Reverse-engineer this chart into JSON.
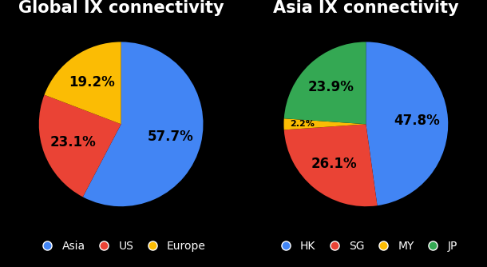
{
  "global": {
    "title": "Global IX connectivity",
    "values": [
      57.7,
      23.1,
      19.2
    ],
    "labels": [
      "57.7%",
      "23.1%",
      "19.2%"
    ],
    "colors": [
      "#4285f4",
      "#ea4335",
      "#fbbc04"
    ],
    "legend_labels": [
      "Asia",
      "US",
      "Europe"
    ],
    "legend_colors": [
      "#4285f4",
      "#ea4335",
      "#fbbc04"
    ],
    "startangle": 90,
    "counterclock": false
  },
  "asia": {
    "title": "Asia IX connectivity",
    "values": [
      47.8,
      26.1,
      2.2,
      23.9
    ],
    "labels": [
      "47.8%",
      "26.1%",
      "2.2%",
      "23.9%"
    ],
    "colors": [
      "#4285f4",
      "#ea4335",
      "#fbbc04",
      "#34a853"
    ],
    "legend_labels": [
      "HK",
      "SG",
      "MY",
      "JP"
    ],
    "legend_colors": [
      "#4285f4",
      "#ea4335",
      "#fbbc04",
      "#34a853"
    ],
    "startangle": 90,
    "counterclock": false
  },
  "background_color": "#000000",
  "label_text_color": "#000000",
  "title_text_color": "#ffffff",
  "legend_text_color": "#ffffff",
  "title_fontsize": 15,
  "label_fontsize": 12,
  "small_label_fontsize": 8,
  "legend_fontsize": 10
}
